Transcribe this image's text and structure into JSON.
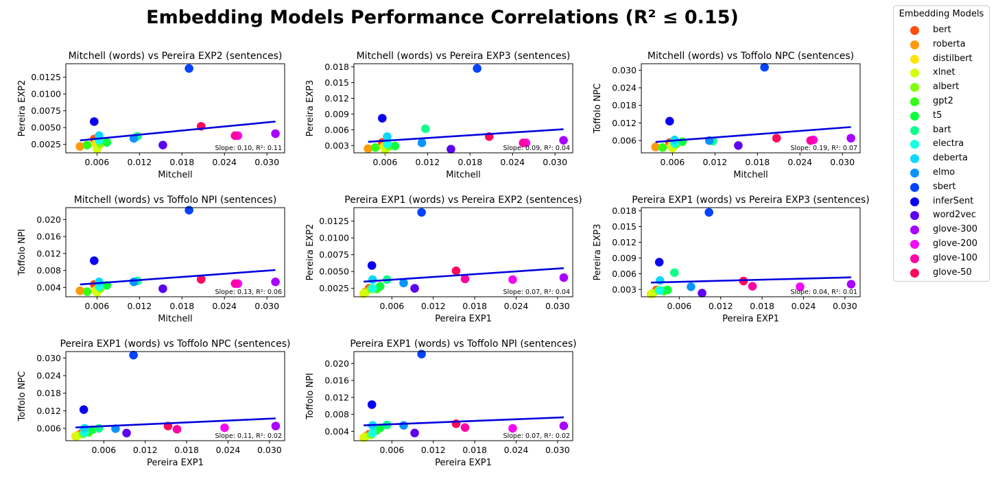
{
  "title": "Embedding Models Performance Correlations (R² ≤ 0.15)",
  "legend": {
    "title": "Embedding Models",
    "placement": "upper-right-outside",
    "models": [
      {
        "name": "bert",
        "color": "#ff4f0e"
      },
      {
        "name": "roberta",
        "color": "#ff9a08"
      },
      {
        "name": "distilbert",
        "color": "#ffe40a"
      },
      {
        "name": "xlnet",
        "color": "#d2ff0b"
      },
      {
        "name": "albert",
        "color": "#7dff0e"
      },
      {
        "name": "gpt2",
        "color": "#33ff14"
      },
      {
        "name": "t5",
        "color": "#0dff3e"
      },
      {
        "name": "bart",
        "color": "#10ff8c"
      },
      {
        "name": "electra",
        "color": "#14ffe3"
      },
      {
        "name": "deberta",
        "color": "#0fd7ff"
      },
      {
        "name": "elmo",
        "color": "#0a94ff"
      },
      {
        "name": "sbert",
        "color": "#0443ff"
      },
      {
        "name": "inferSent",
        "color": "#0a00f0"
      },
      {
        "name": "word2vec",
        "color": "#5d00f0"
      },
      {
        "name": "glove-300",
        "color": "#aa00ff"
      },
      {
        "name": "glove-200",
        "color": "#f30bf5"
      },
      {
        "name": "glove-100",
        "color": "#ff03a6"
      },
      {
        "name": "glove-50",
        "color": "#ff0a5b"
      }
    ]
  },
  "chart_data": [
    {
      "type": "scatter",
      "title": "Mitchell (words) vs Pereira EXP2 (sentences)",
      "xlabel": "Mitchell",
      "ylabel": "Pereira EXP2",
      "xlim": [
        0.0016,
        0.0325
      ],
      "ylim": [
        0.00125,
        0.0145
      ],
      "xticks": [
        0.006,
        0.012,
        0.018,
        0.024,
        0.03
      ],
      "xtick_labels": [
        "0.006",
        "0.012",
        "0.018",
        "0.024",
        "0.030"
      ],
      "yticks": [
        0.0025,
        0.005,
        0.0075,
        0.01,
        0.0125
      ],
      "ytick_labels": [
        "0.0025",
        "0.0050",
        "0.0075",
        "0.0100",
        "0.0125"
      ],
      "points": {
        "bert": [
          0.0056,
          0.0033
        ],
        "roberta": [
          0.0036,
          0.0022
        ],
        "distilbert": [
          0.0058,
          0.0026
        ],
        "xlnet": [
          0.006,
          0.0018
        ],
        "albert": [
          0.0065,
          0.0026
        ],
        "gpt2": [
          0.0046,
          0.0024
        ],
        "t5": [
          0.0074,
          0.0028
        ],
        "bart": [
          0.0117,
          0.0037
        ],
        "electra": [
          0.0063,
          0.0031
        ],
        "deberta": [
          0.0063,
          0.0038
        ],
        "elmo": [
          0.0112,
          0.0034
        ],
        "sbert": [
          0.019,
          0.0138
        ],
        "inferSent": [
          0.0056,
          0.0059
        ],
        "word2vec": [
          0.0153,
          0.0024
        ],
        "glove-300": [
          0.0312,
          0.0041
        ],
        "glove-200": [
          0.0259,
          0.0038
        ],
        "glove-100": [
          0.0255,
          0.0038
        ],
        "glove-50": [
          0.0207,
          0.0052
        ]
      },
      "fit": {
        "x": [
          0.0036,
          0.0312
        ],
        "y": [
          0.0031,
          0.0059
        ]
      },
      "annotation": "Slope: 0.10, R²: 0.11"
    },
    {
      "type": "scatter",
      "title": "Mitchell (words) vs Pereira EXP3 (sentences)",
      "xlabel": "Mitchell",
      "ylabel": "Pereira EXP3",
      "xlim": [
        0.0016,
        0.0325
      ],
      "ylim": [
        0.0016,
        0.0186
      ],
      "xticks": [
        0.006,
        0.012,
        0.018,
        0.024,
        0.03
      ],
      "xtick_labels": [
        "0.006",
        "0.012",
        "0.018",
        "0.024",
        "0.030"
      ],
      "yticks": [
        0.003,
        0.006,
        0.009,
        0.012,
        0.015,
        0.018
      ],
      "ytick_labels": [
        "0.003",
        "0.006",
        "0.009",
        "0.012",
        "0.015",
        "0.018"
      ],
      "points": {
        "bert": [
          0.0056,
          0.0036
        ],
        "roberta": [
          0.0036,
          0.0024
        ],
        "distilbert": [
          0.0058,
          0.0028
        ],
        "xlnet": [
          0.006,
          0.0022
        ],
        "albert": [
          0.0065,
          0.0028
        ],
        "gpt2": [
          0.0046,
          0.0026
        ],
        "t5": [
          0.0074,
          0.0029
        ],
        "bart": [
          0.0117,
          0.0062
        ],
        "electra": [
          0.0063,
          0.0033
        ],
        "deberta": [
          0.0063,
          0.0047
        ],
        "elmo": [
          0.0112,
          0.0035
        ],
        "sbert": [
          0.019,
          0.0177
        ],
        "inferSent": [
          0.0056,
          0.0082
        ],
        "word2vec": [
          0.0153,
          0.0023
        ],
        "glove-300": [
          0.0312,
          0.004
        ],
        "glove-200": [
          0.0259,
          0.0035
        ],
        "glove-100": [
          0.0255,
          0.0035
        ],
        "glove-50": [
          0.0207,
          0.0047
        ]
      },
      "fit": {
        "x": [
          0.0036,
          0.0312
        ],
        "y": [
          0.0037,
          0.0061
        ]
      },
      "annotation": "Slope: 0.09, R²: 0.04"
    },
    {
      "type": "scatter",
      "title": "Mitchell (words) vs Toffolo NPC (sentences)",
      "xlabel": "Mitchell",
      "ylabel": "Toffolo NPC",
      "xlim": [
        0.0016,
        0.0325
      ],
      "ylim": [
        0.0018,
        0.0322
      ],
      "xticks": [
        0.006,
        0.012,
        0.018,
        0.024,
        0.03
      ],
      "xtick_labels": [
        "0.006",
        "0.012",
        "0.018",
        "0.024",
        "0.030"
      ],
      "yticks": [
        0.006,
        0.012,
        0.018,
        0.024,
        0.03
      ],
      "ytick_labels": [
        "0.006",
        "0.012",
        "0.018",
        "0.024",
        "0.030"
      ],
      "points": {
        "bert": [
          0.0056,
          0.0053
        ],
        "roberta": [
          0.0036,
          0.0038
        ],
        "distilbert": [
          0.0058,
          0.0042
        ],
        "xlnet": [
          0.006,
          0.0034
        ],
        "albert": [
          0.0065,
          0.0047
        ],
        "gpt2": [
          0.0046,
          0.0036
        ],
        "t5": [
          0.0074,
          0.0056
        ],
        "bart": [
          0.0117,
          0.0058
        ],
        "electra": [
          0.0063,
          0.005
        ],
        "deberta": [
          0.0063,
          0.0062
        ],
        "elmo": [
          0.0112,
          0.006
        ],
        "sbert": [
          0.019,
          0.031
        ],
        "inferSent": [
          0.0056,
          0.0126
        ],
        "word2vec": [
          0.0153,
          0.0043
        ],
        "glove-300": [
          0.0312,
          0.0068
        ],
        "glove-200": [
          0.0259,
          0.0062
        ],
        "glove-100": [
          0.0255,
          0.006
        ],
        "glove-50": [
          0.0207,
          0.0068
        ]
      },
      "fit": {
        "x": [
          0.0036,
          0.0312
        ],
        "y": [
          0.0055,
          0.0106
        ]
      },
      "annotation": "Slope: 0.19, R²: 0.07"
    },
    {
      "type": "scatter",
      "title": "Mitchell (words) vs Toffolo NPI (sentences)",
      "xlabel": "Mitchell",
      "ylabel": "Toffolo NPI",
      "xlim": [
        0.0016,
        0.0325
      ],
      "ylim": [
        0.0018,
        0.0228
      ],
      "xticks": [
        0.006,
        0.012,
        0.018,
        0.024,
        0.03
      ],
      "xtick_labels": [
        "0.006",
        "0.012",
        "0.018",
        "0.024",
        "0.030"
      ],
      "yticks": [
        0.004,
        0.008,
        0.012,
        0.016,
        0.02
      ],
      "ytick_labels": [
        "0.004",
        "0.008",
        "0.012",
        "0.016",
        "0.020"
      ],
      "points": {
        "bert": [
          0.0056,
          0.0047
        ],
        "roberta": [
          0.0036,
          0.0032
        ],
        "distilbert": [
          0.0058,
          0.0033
        ],
        "xlnet": [
          0.006,
          0.0028
        ],
        "albert": [
          0.0065,
          0.0038
        ],
        "gpt2": [
          0.0046,
          0.003
        ],
        "t5": [
          0.0074,
          0.0045
        ],
        "bart": [
          0.0117,
          0.0055
        ],
        "electra": [
          0.0063,
          0.0042
        ],
        "deberta": [
          0.0063,
          0.0053
        ],
        "elmo": [
          0.0112,
          0.0053
        ],
        "sbert": [
          0.019,
          0.0222
        ],
        "inferSent": [
          0.0056,
          0.0103
        ],
        "word2vec": [
          0.0153,
          0.0037
        ],
        "glove-300": [
          0.0312,
          0.0053
        ],
        "glove-200": [
          0.0259,
          0.0049
        ],
        "glove-100": [
          0.0255,
          0.0049
        ],
        "glove-50": [
          0.0207,
          0.0059
        ]
      },
      "fit": {
        "x": [
          0.0036,
          0.0312
        ],
        "y": [
          0.0047,
          0.0081
        ]
      },
      "annotation": "Slope: 0.13, R²: 0.06"
    },
    {
      "type": "scatter",
      "title": "Pereira EXP1 (words) vs Pereira EXP2 (sentences)",
      "xlabel": "Pereira EXP1",
      "ylabel": "Pereira EXP2",
      "xlim": [
        0.0005,
        0.0322
      ],
      "ylim": [
        0.00125,
        0.0145
      ],
      "xticks": [
        0.006,
        0.012,
        0.018,
        0.024,
        0.03
      ],
      "xtick_labels": [
        "0.006",
        "0.012",
        "0.018",
        "0.024",
        "0.030"
      ],
      "yticks": [
        0.0025,
        0.005,
        0.0075,
        0.01,
        0.0125
      ],
      "ytick_labels": [
        "0.0025",
        "0.0050",
        "0.0075",
        "0.0100",
        "0.0125"
      ],
      "points": {
        "bert": [
          0.0027,
          0.0025
        ],
        "roberta": [
          0.0022,
          0.002
        ],
        "distilbert": [
          0.0019,
          0.0017
        ],
        "xlnet": [
          0.0021,
          0.0018
        ],
        "albert": [
          0.003,
          0.0024
        ],
        "gpt2": [
          0.0038,
          0.0024
        ],
        "t5": [
          0.0043,
          0.0028
        ],
        "bart": [
          0.0053,
          0.0038
        ],
        "electra": [
          0.0032,
          0.0025
        ],
        "deberta": [
          0.0032,
          0.0038
        ],
        "elmo": [
          0.0077,
          0.0033
        ],
        "sbert": [
          0.0103,
          0.0138
        ],
        "inferSent": [
          0.0031,
          0.0059
        ],
        "word2vec": [
          0.0093,
          0.0025
        ],
        "glove-300": [
          0.0309,
          0.0041
        ],
        "glove-200": [
          0.0235,
          0.0038
        ],
        "glove-100": [
          0.0166,
          0.0039
        ],
        "glove-50": [
          0.0153,
          0.0051
        ]
      },
      "fit": {
        "x": [
          0.0019,
          0.0309
        ],
        "y": [
          0.0035,
          0.0055
        ]
      },
      "annotation": "Slope: 0.07, R²: 0.04"
    },
    {
      "type": "scatter",
      "title": "Pereira EXP1 (words) vs Pereira EXP3 (sentences)",
      "xlabel": "Pereira EXP1",
      "ylabel": "Pereira EXP3",
      "xlim": [
        0.0005,
        0.0322
      ],
      "ylim": [
        0.0016,
        0.0186
      ],
      "xticks": [
        0.006,
        0.012,
        0.018,
        0.024,
        0.03
      ],
      "xtick_labels": [
        "0.006",
        "0.012",
        "0.018",
        "0.024",
        "0.030"
      ],
      "yticks": [
        0.003,
        0.006,
        0.009,
        0.012,
        0.015,
        0.018
      ],
      "ytick_labels": [
        "0.003",
        "0.006",
        "0.009",
        "0.012",
        "0.015",
        "0.018"
      ],
      "points": {
        "bert": [
          0.0027,
          0.0029
        ],
        "roberta": [
          0.0022,
          0.0023
        ],
        "distilbert": [
          0.0019,
          0.0021
        ],
        "xlnet": [
          0.0021,
          0.0022
        ],
        "albert": [
          0.003,
          0.0028
        ],
        "gpt2": [
          0.0038,
          0.0027
        ],
        "t5": [
          0.0043,
          0.0029
        ],
        "bart": [
          0.0053,
          0.0062
        ],
        "electra": [
          0.0032,
          0.0028
        ],
        "deberta": [
          0.0032,
          0.0047
        ],
        "elmo": [
          0.0077,
          0.0035
        ],
        "sbert": [
          0.0103,
          0.0177
        ],
        "inferSent": [
          0.0031,
          0.0082
        ],
        "word2vec": [
          0.0093,
          0.0023
        ],
        "glove-300": [
          0.0309,
          0.004
        ],
        "glove-200": [
          0.0235,
          0.0035
        ],
        "glove-100": [
          0.0166,
          0.0036
        ],
        "glove-50": [
          0.0153,
          0.0046
        ]
      },
      "fit": {
        "x": [
          0.0019,
          0.0309
        ],
        "y": [
          0.0043,
          0.0053
        ]
      },
      "annotation": "Slope: 0.04, R²: 0.01"
    },
    {
      "type": "scatter",
      "title": "Pereira EXP1 (words) vs Toffolo NPC (sentences)",
      "xlabel": "Pereira EXP1",
      "ylabel": "Toffolo NPC",
      "xlim": [
        0.0005,
        0.0322
      ],
      "ylim": [
        0.0018,
        0.0322
      ],
      "xticks": [
        0.006,
        0.012,
        0.018,
        0.024,
        0.03
      ],
      "xtick_labels": [
        "0.006",
        "0.012",
        "0.018",
        "0.024",
        "0.030"
      ],
      "yticks": [
        0.006,
        0.012,
        0.018,
        0.024,
        0.03
      ],
      "ytick_labels": [
        "0.006",
        "0.012",
        "0.018",
        "0.024",
        "0.030"
      ],
      "points": {
        "bert": [
          0.0027,
          0.0042
        ],
        "roberta": [
          0.0022,
          0.0036
        ],
        "distilbert": [
          0.0019,
          0.0033
        ],
        "xlnet": [
          0.0021,
          0.0034
        ],
        "albert": [
          0.003,
          0.0041
        ],
        "gpt2": [
          0.0038,
          0.0046
        ],
        "t5": [
          0.0043,
          0.0055
        ],
        "bart": [
          0.0053,
          0.006
        ],
        "electra": [
          0.0032,
          0.0045
        ],
        "deberta": [
          0.0032,
          0.006
        ],
        "elmo": [
          0.0077,
          0.0059
        ],
        "sbert": [
          0.0103,
          0.031
        ],
        "inferSent": [
          0.0031,
          0.0124
        ],
        "word2vec": [
          0.0093,
          0.0044
        ],
        "glove-300": [
          0.0309,
          0.0068
        ],
        "glove-200": [
          0.0235,
          0.0062
        ],
        "glove-100": [
          0.0166,
          0.0057
        ],
        "glove-50": [
          0.0153,
          0.0068
        ]
      },
      "fit": {
        "x": [
          0.0019,
          0.0309
        ],
        "y": [
          0.0063,
          0.0094
        ]
      },
      "annotation": "Slope: 0.11, R²: 0.02"
    },
    {
      "type": "scatter",
      "title": "Pereira EXP1 (words) vs Toffolo NPI (sentences)",
      "xlabel": "Pereira EXP1",
      "ylabel": "Toffolo NPI",
      "xlim": [
        0.0005,
        0.0322
      ],
      "ylim": [
        0.0018,
        0.0228
      ],
      "xticks": [
        0.006,
        0.012,
        0.018,
        0.024,
        0.03
      ],
      "xtick_labels": [
        "0.006",
        "0.012",
        "0.018",
        "0.024",
        "0.030"
      ],
      "yticks": [
        0.004,
        0.008,
        0.012,
        0.016,
        0.02
      ],
      "ytick_labels": [
        "0.004",
        "0.008",
        "0.012",
        "0.016",
        "0.020"
      ],
      "points": {
        "bert": [
          0.0027,
          0.0033
        ],
        "roberta": [
          0.0022,
          0.0028
        ],
        "distilbert": [
          0.0019,
          0.0025
        ],
        "xlnet": [
          0.0021,
          0.0026
        ],
        "albert": [
          0.003,
          0.0032
        ],
        "gpt2": [
          0.0038,
          0.0042
        ],
        "t5": [
          0.0043,
          0.0048
        ],
        "bart": [
          0.0053,
          0.0055
        ],
        "electra": [
          0.0032,
          0.0036
        ],
        "deberta": [
          0.0032,
          0.0054
        ],
        "elmo": [
          0.0077,
          0.0054
        ],
        "sbert": [
          0.0103,
          0.0222
        ],
        "inferSent": [
          0.0031,
          0.0103
        ],
        "word2vec": [
          0.0093,
          0.0036
        ],
        "glove-300": [
          0.0309,
          0.0053
        ],
        "glove-200": [
          0.0235,
          0.0047
        ],
        "glove-100": [
          0.0166,
          0.0049
        ],
        "glove-50": [
          0.0153,
          0.0058
        ]
      },
      "fit": {
        "x": [
          0.0019,
          0.0309
        ],
        "y": [
          0.0054,
          0.0073
        ]
      },
      "annotation": "Slope: 0.07, R²: 0.02"
    }
  ]
}
